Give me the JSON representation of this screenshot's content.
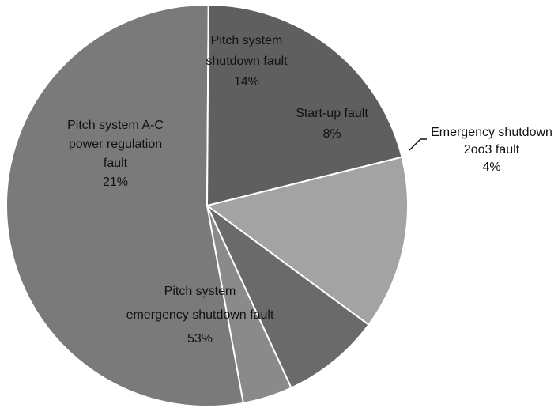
{
  "chart_data": {
    "type": "pie",
    "slices": [
      {
        "label": "Pitch system shutdown fault",
        "value": 14,
        "value_label": "14%",
        "color": "#a3a3a3"
      },
      {
        "label": "Start-up fault",
        "value": 8,
        "value_label": "8%",
        "color": "#6a6a6a"
      },
      {
        "label": "Emergency shutdown 2oo3 fault",
        "value": 4,
        "value_label": "4%",
        "color": "#8a8a8a"
      },
      {
        "label": "Pitch system emergency shutdown fault",
        "value": 53,
        "value_label": "53%",
        "color": "#7a7a7a"
      },
      {
        "label": "Pitch system A-C power regulation fault",
        "value": 21,
        "value_label": "21%",
        "color": "#5f5f5f"
      }
    ],
    "start_angle_deg": -14,
    "direction": "clockwise",
    "legend": "none"
  }
}
